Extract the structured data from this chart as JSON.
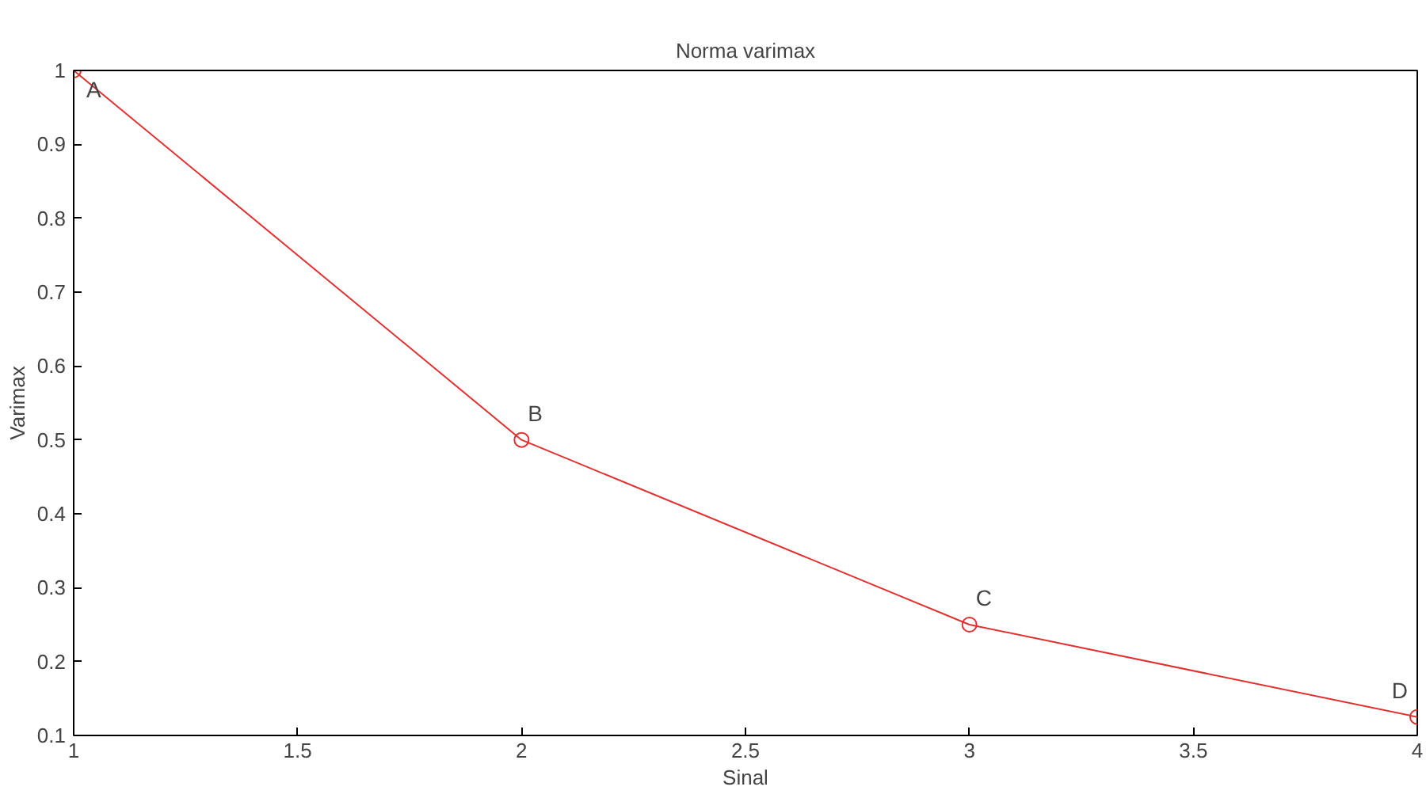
{
  "chart_data": {
    "type": "line",
    "title": "Norma varimax",
    "xlabel": "Sinal",
    "ylabel": "Varimax",
    "x": [
      1,
      2,
      3,
      4
    ],
    "series": [
      {
        "color": "#e03030",
        "values": [
          1,
          0.5,
          0.25,
          0.125
        ]
      }
    ],
    "xlim": [
      1,
      4
    ],
    "ylim": [
      0.1,
      1
    ],
    "xticks": [
      1,
      1.5,
      2,
      2.5,
      3,
      3.5,
      4
    ],
    "yticks": [
      0.1,
      0.2,
      0.3,
      0.4,
      0.5,
      0.6,
      0.7,
      0.8,
      0.9,
      1
    ],
    "annotations": [
      {
        "text": "A",
        "x": 1,
        "y": 1
      },
      {
        "text": "B",
        "x": 2,
        "y": 0.5
      },
      {
        "text": "C",
        "x": 3,
        "y": 0.25
      },
      {
        "text": "D",
        "x": 4,
        "y": 0.125
      }
    ],
    "grid": false,
    "marker": "circle",
    "line_style": "solid"
  }
}
